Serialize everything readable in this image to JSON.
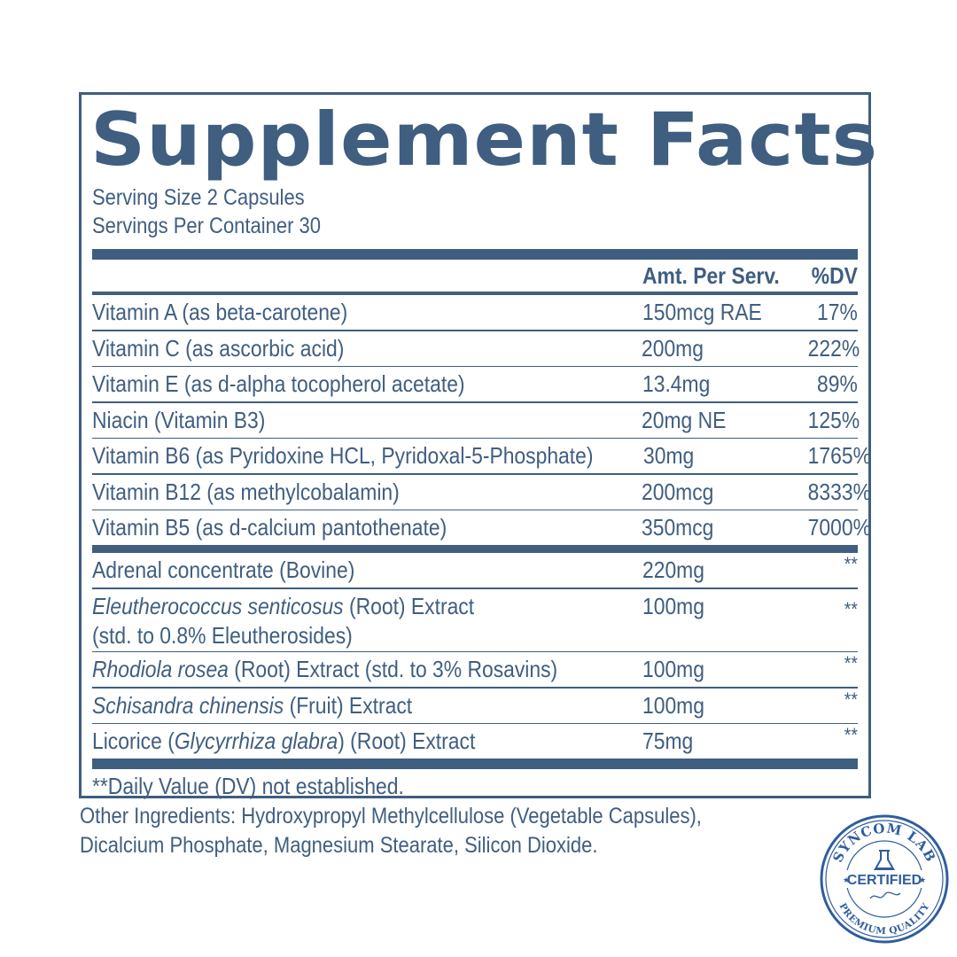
{
  "label": {
    "title": "Supplement Facts",
    "serving_size": "Serving Size 2 Capsules",
    "servings_per_container": "Servings Per Container 30",
    "header": {
      "amount": "Amt. Per Serv.",
      "dv": "%DV"
    },
    "vitamins": [
      {
        "name": "Vitamin A (as beta-carotene)",
        "amount": "150mcg RAE",
        "dv": "17%"
      },
      {
        "name": "Vitamin C (as ascorbic acid)",
        "amount": "200mg",
        "dv": "222%"
      },
      {
        "name": "Vitamin E (as d-alpha tocopherol acetate)",
        "amount": "13.4mg",
        "dv": "89%"
      },
      {
        "name": "Niacin (Vitamin B3)",
        "amount": "20mg NE",
        "dv": "125%"
      },
      {
        "name": "Vitamin B6 (as Pyridoxine HCL, Pyridoxal-5-Phosphate)",
        "amount": "30mg",
        "dv": "1765%"
      },
      {
        "name": "Vitamin B12 (as methylcobalamin)",
        "amount": "200mcg",
        "dv": "8333%"
      },
      {
        "name": "Vitamin B5 (as d-calcium pantothenate)",
        "amount": "350mcg",
        "dv": "7000%"
      }
    ],
    "herbals": [
      {
        "name": "Adrenal concentrate (Bovine)",
        "amount": "220mg",
        "dv": "**"
      },
      {
        "name_italic": "Eleutherococcus senticosus",
        "name_rest": " (Root) Extract",
        "name_line2": "(std. to 0.8% Eleutherosides)",
        "amount": "100mg",
        "dv": "**"
      },
      {
        "name_italic": "Rhodiola rosea",
        "name_rest": " (Root) Extract (std. to 3% Rosavins)",
        "amount": "100mg",
        "dv": "**"
      },
      {
        "name_italic": "Schisandra chinensis",
        "name_rest": " (Fruit) Extract",
        "amount": "100mg",
        "dv": "**"
      },
      {
        "name_pre": "Licorice (",
        "name_italic": "Glycyrrhiza glabra",
        "name_rest": ") (Root) Extract",
        "amount": "75mg",
        "dv": "**"
      }
    ],
    "footnote": "**Daily Value (DV) not established."
  },
  "other_ingredients": {
    "line1": "Other Ingredients: Hydroxypropyl Methylcellulose (Vegetable Capsules),",
    "line2": "Dicalcium Phosphate, Magnesium Stearate, Silicon Dioxide."
  },
  "seal": {
    "top_text": "SYNCOM LAB",
    "center_text": "CERTIFIED",
    "bottom_text": "PREMIUM QUALITY",
    "icon": "flask-icon",
    "color": "#2f5d9e"
  },
  "colors": {
    "text": "#3f5e80",
    "rule": "#3f5e80",
    "background": "#ffffff"
  }
}
